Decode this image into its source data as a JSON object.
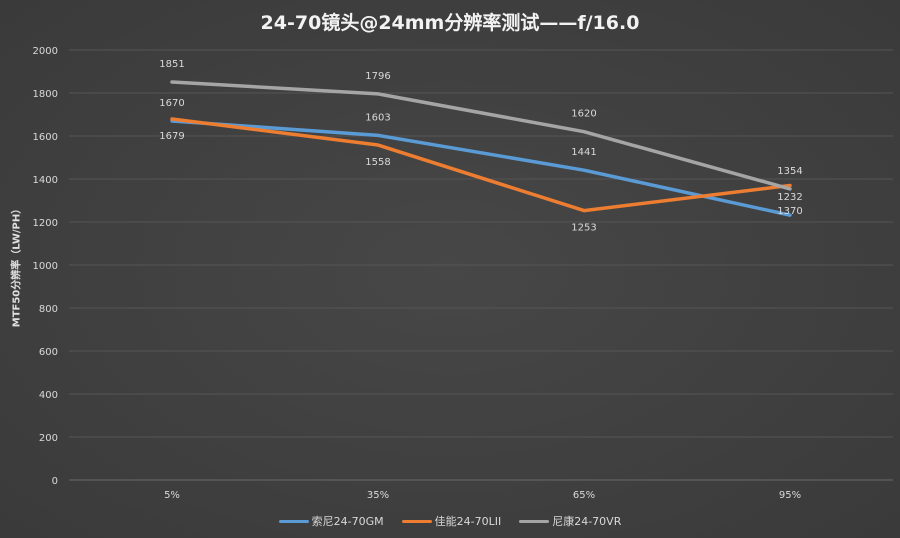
{
  "chart_data": {
    "type": "line",
    "title": "24-70镜头@24mm分辨率测试——f/16.0",
    "xlabel": "",
    "ylabel": "MTF50分辨率（LW/PH）",
    "categories": [
      "5%",
      "35%",
      "65%",
      "95%"
    ],
    "ylim": [
      0,
      2000
    ],
    "yticks": [
      0,
      200,
      400,
      600,
      800,
      1000,
      1200,
      1400,
      1600,
      1800,
      2000
    ],
    "grid": true,
    "legend": "bottom",
    "series": [
      {
        "name": "索尼24-70GM",
        "color": "#5b9bd5",
        "values": [
          1670,
          1603,
          1441,
          1232
        ],
        "label_pos": "above"
      },
      {
        "name": "佳能24-70LII",
        "color": "#ed7d31",
        "values": [
          1679,
          1558,
          1253,
          1370
        ],
        "label_pos": "below"
      },
      {
        "name": "尼康24-70VR",
        "color": "#a5a5a5",
        "values": [
          1851,
          1796,
          1620,
          1354
        ],
        "label_pos": "above"
      }
    ]
  }
}
